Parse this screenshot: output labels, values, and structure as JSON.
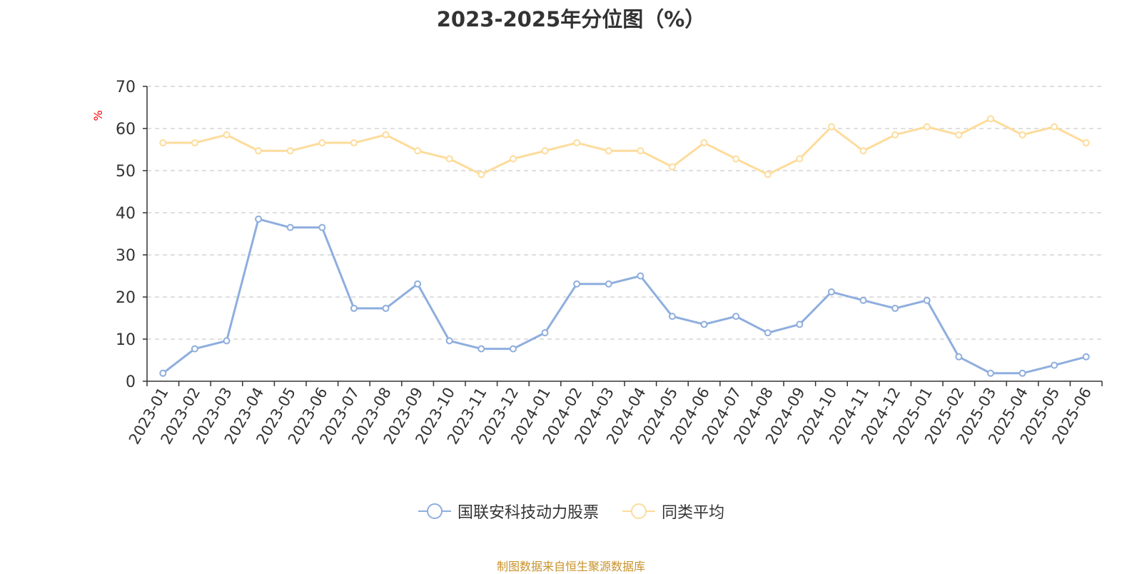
{
  "title": "2023-2025年分位图（%）",
  "source": "制图数据来自恒生聚源数据库",
  "chart_data": {
    "type": "line",
    "title": "2023-2025年分位图（%）",
    "ylabel": "%",
    "ylim": [
      0,
      70
    ],
    "yticks": [
      0,
      10,
      20,
      30,
      40,
      50,
      60,
      70
    ],
    "grid": true,
    "legend_position": "bottom",
    "categories": [
      "2023-01",
      "2023-02",
      "2023-03",
      "2023-04",
      "2023-05",
      "2023-06",
      "2023-07",
      "2023-08",
      "2023-09",
      "2023-10",
      "2023-11",
      "2023-12",
      "2024-01",
      "2024-02",
      "2024-03",
      "2024-04",
      "2024-05",
      "2024-06",
      "2024-07",
      "2024-08",
      "2024-09",
      "2024-10",
      "2024-11",
      "2024-12",
      "2025-01",
      "2025-02",
      "2025-03",
      "2025-04",
      "2025-05",
      "2025-06"
    ],
    "series": [
      {
        "name": "国联安科技动力股票",
        "color": "#8eaede",
        "values": [
          1.9,
          7.7,
          9.6,
          38.5,
          36.5,
          36.5,
          17.3,
          17.3,
          23.1,
          9.6,
          7.7,
          7.7,
          11.5,
          23.1,
          23.1,
          25.0,
          15.4,
          13.5,
          15.4,
          11.5,
          13.5,
          21.2,
          19.2,
          17.3,
          19.2,
          5.8,
          1.9,
          1.9,
          3.8,
          5.8
        ]
      },
      {
        "name": "同类平均",
        "color": "#fddc9b",
        "values": [
          56.6,
          56.6,
          58.5,
          54.7,
          54.7,
          56.6,
          56.6,
          58.5,
          54.7,
          52.8,
          49.1,
          52.8,
          54.7,
          56.6,
          54.7,
          54.7,
          50.9,
          56.6,
          52.8,
          49.1,
          52.8,
          60.4,
          54.7,
          58.5,
          60.4,
          58.5,
          62.3,
          58.5,
          60.4,
          56.6
        ]
      }
    ]
  }
}
